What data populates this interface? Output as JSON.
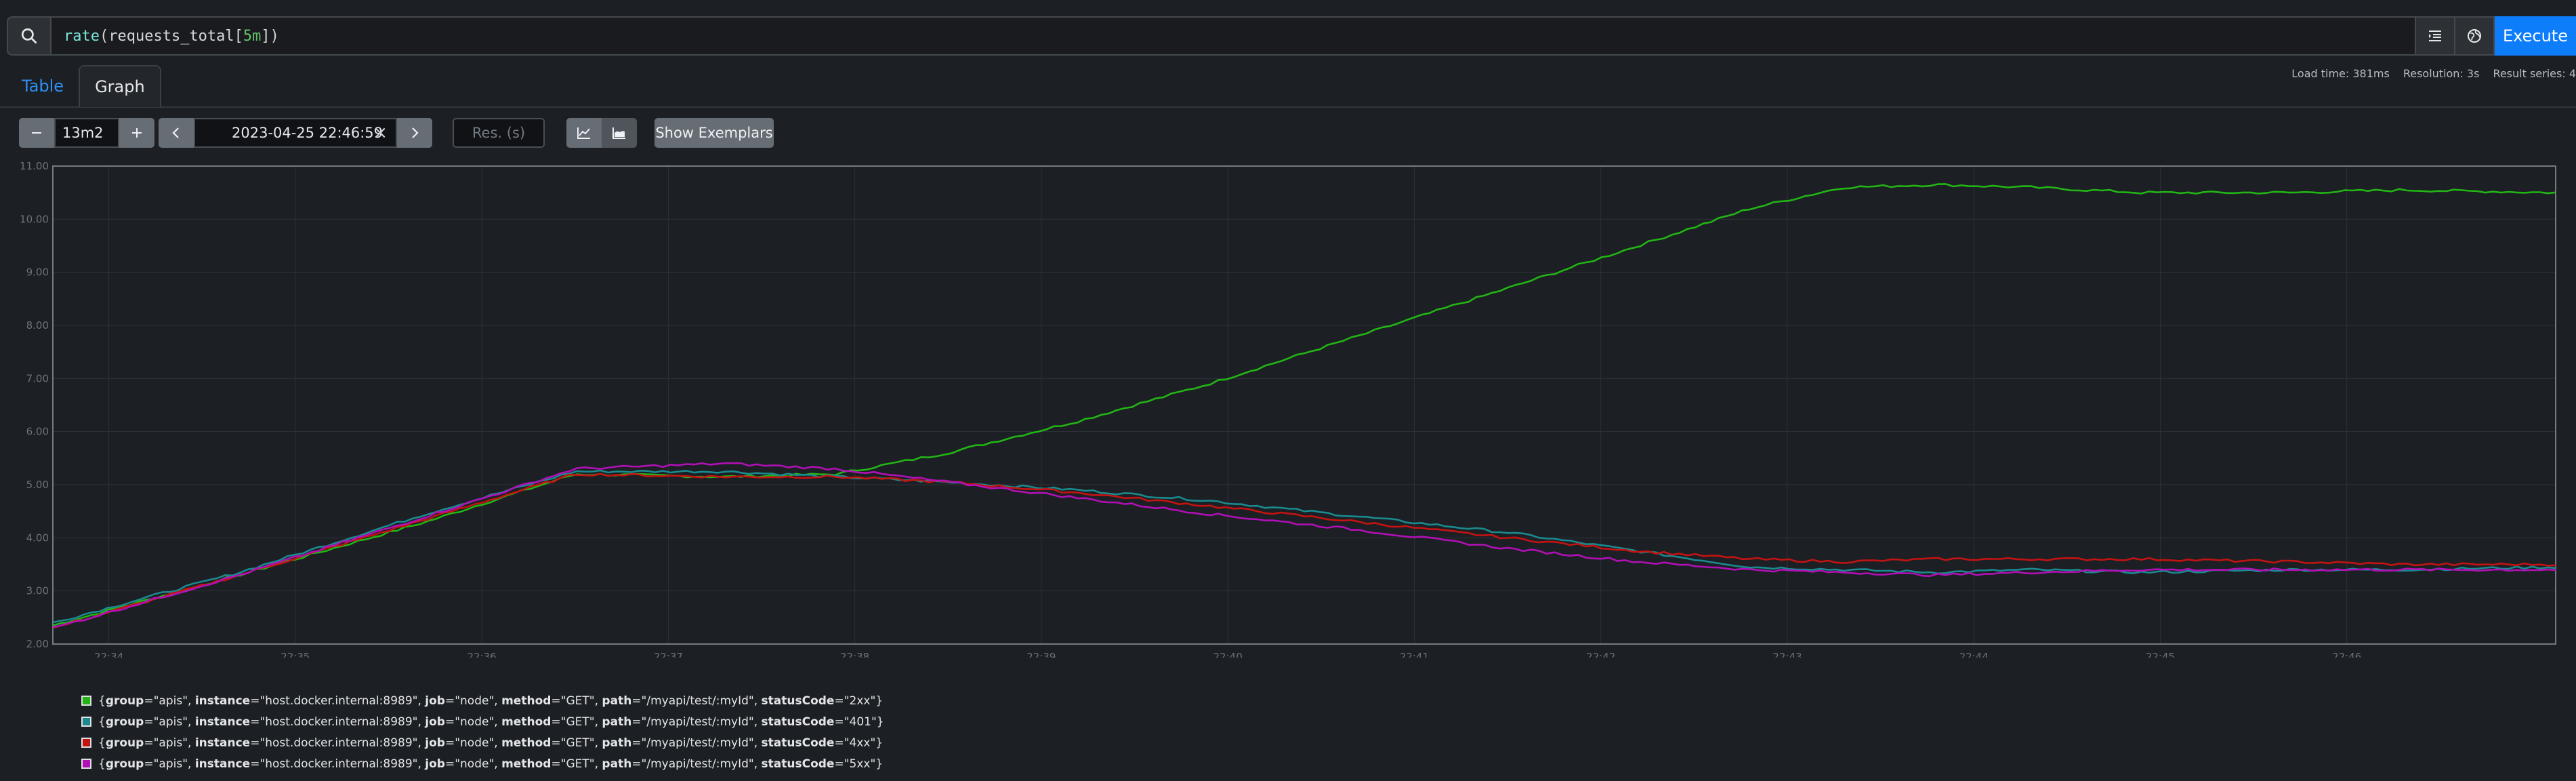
{
  "query": {
    "function": "rate",
    "metric": "requests_total",
    "range": "5m"
  },
  "toolbar": {
    "execute_label": "Execute",
    "search_icon": "search-icon",
    "format_icon": "format-query-icon",
    "explorer_icon": "metrics-explorer-icon"
  },
  "tabs": [
    {
      "label": "Table",
      "active": false
    },
    {
      "label": "Graph",
      "active": true
    }
  ],
  "meta": {
    "load_time": "Load time: 381ms",
    "resolution": "Resolution: 3s",
    "result_series": "Result series: 4"
  },
  "controls": {
    "range_value": "13m2",
    "decrease_icon": "minus-icon",
    "increase_icon": "plus-icon",
    "end_time": "2023-04-25 22:46:59",
    "clear_icon": "close-icon",
    "prev_icon": "chevron-left-icon",
    "next_icon": "chevron-right-icon",
    "resolution_placeholder": "Res. (s)",
    "line_icon": "line-chart-icon",
    "stacked_icon": "stacked-chart-icon",
    "exemplars_label": "Show Exemplars"
  },
  "chart_data": {
    "type": "line",
    "ylim": [
      2.0,
      11.0
    ],
    "yticks": [
      "2.00",
      "3.00",
      "4.00",
      "5.00",
      "6.00",
      "7.00",
      "8.00",
      "9.00",
      "10.00",
      "11.00"
    ],
    "xlim": [
      0,
      13.42
    ],
    "xticks": [
      {
        "t": 0.3,
        "label": "22:34"
      },
      {
        "t": 1.3,
        "label": "22:35"
      },
      {
        "t": 2.3,
        "label": "22:36"
      },
      {
        "t": 3.3,
        "label": "22:37"
      },
      {
        "t": 4.3,
        "label": "22:38"
      },
      {
        "t": 5.3,
        "label": "22:39"
      },
      {
        "t": 6.3,
        "label": "22:40"
      },
      {
        "t": 7.3,
        "label": "22:41"
      },
      {
        "t": 8.3,
        "label": "22:42"
      },
      {
        "t": 9.3,
        "label": "22:43"
      },
      {
        "t": 10.3,
        "label": "22:44"
      },
      {
        "t": 11.3,
        "label": "22:45"
      },
      {
        "t": 12.3,
        "label": "22:46"
      }
    ],
    "grid": true,
    "series": [
      {
        "color": "#22b515",
        "points": [
          [
            0,
            2.35
          ],
          [
            1,
            3.3
          ],
          [
            2,
            4.3
          ],
          [
            2.8,
            5.2
          ],
          [
            3.6,
            5.15
          ],
          [
            4.2,
            5.2
          ],
          [
            4.8,
            5.6
          ],
          [
            5.5,
            6.2
          ],
          [
            6.2,
            6.9
          ],
          [
            7,
            7.8
          ],
          [
            7.8,
            8.7
          ],
          [
            8.5,
            9.5
          ],
          [
            9.1,
            10.2
          ],
          [
            9.6,
            10.6
          ],
          [
            10.1,
            10.65
          ],
          [
            10.6,
            10.6
          ],
          [
            11.2,
            10.5
          ],
          [
            12,
            10.5
          ],
          [
            12.6,
            10.55
          ],
          [
            13.42,
            10.5
          ]
        ]
      },
      {
        "color": "#1a8a8e",
        "points": [
          [
            0,
            2.4
          ],
          [
            1,
            3.35
          ],
          [
            2,
            4.45
          ],
          [
            2.8,
            5.25
          ],
          [
            3.6,
            5.25
          ],
          [
            4.2,
            5.15
          ],
          [
            4.8,
            5.05
          ],
          [
            5.5,
            4.9
          ],
          [
            6.2,
            4.7
          ],
          [
            7,
            4.4
          ],
          [
            7.8,
            4.1
          ],
          [
            8.5,
            3.75
          ],
          [
            9.1,
            3.45
          ],
          [
            9.6,
            3.4
          ],
          [
            10.1,
            3.35
          ],
          [
            10.6,
            3.4
          ],
          [
            11.2,
            3.35
          ],
          [
            12,
            3.4
          ],
          [
            12.6,
            3.4
          ],
          [
            13.42,
            3.45
          ]
        ]
      },
      {
        "color": "#c41313",
        "points": [
          [
            0,
            2.3
          ],
          [
            1,
            3.3
          ],
          [
            2,
            4.35
          ],
          [
            2.8,
            5.2
          ],
          [
            3.6,
            5.15
          ],
          [
            4.2,
            5.15
          ],
          [
            4.8,
            5.05
          ],
          [
            5.5,
            4.85
          ],
          [
            6.2,
            4.6
          ],
          [
            7,
            4.3
          ],
          [
            7.8,
            4.0
          ],
          [
            8.5,
            3.75
          ],
          [
            9.1,
            3.6
          ],
          [
            9.6,
            3.55
          ],
          [
            10.1,
            3.6
          ],
          [
            10.6,
            3.6
          ],
          [
            11.2,
            3.6
          ],
          [
            12,
            3.55
          ],
          [
            12.6,
            3.5
          ],
          [
            13.42,
            3.5
          ]
        ]
      },
      {
        "color": "#b010b5",
        "points": [
          [
            0,
            2.3
          ],
          [
            1,
            3.3
          ],
          [
            2,
            4.4
          ],
          [
            2.8,
            5.3
          ],
          [
            3.6,
            5.4
          ],
          [
            4.2,
            5.3
          ],
          [
            4.8,
            5.05
          ],
          [
            5.5,
            4.75
          ],
          [
            6.2,
            4.45
          ],
          [
            7,
            4.15
          ],
          [
            7.8,
            3.8
          ],
          [
            8.5,
            3.55
          ],
          [
            9.1,
            3.4
          ],
          [
            9.6,
            3.35
          ],
          [
            10.1,
            3.3
          ],
          [
            10.6,
            3.35
          ],
          [
            11.2,
            3.4
          ],
          [
            12,
            3.4
          ],
          [
            12.6,
            3.4
          ],
          [
            13.42,
            3.4
          ]
        ]
      }
    ]
  },
  "legend": [
    {
      "color": "#22b515",
      "group": "apis",
      "instance": "host.docker.internal:8989",
      "job": "node",
      "method": "GET",
      "path": "/myapi/test/:myId",
      "statusCode": "2xx"
    },
    {
      "color": "#1a8a8e",
      "group": "apis",
      "instance": "host.docker.internal:8989",
      "job": "node",
      "method": "GET",
      "path": "/myapi/test/:myId",
      "statusCode": "401"
    },
    {
      "color": "#c41313",
      "group": "apis",
      "instance": "host.docker.internal:8989",
      "job": "node",
      "method": "GET",
      "path": "/myapi/test/:myId",
      "statusCode": "4xx"
    },
    {
      "color": "#b010b5",
      "group": "apis",
      "instance": "host.docker.internal:8989",
      "job": "node",
      "method": "GET",
      "path": "/myapi/test/:myId",
      "statusCode": "5xx"
    }
  ]
}
